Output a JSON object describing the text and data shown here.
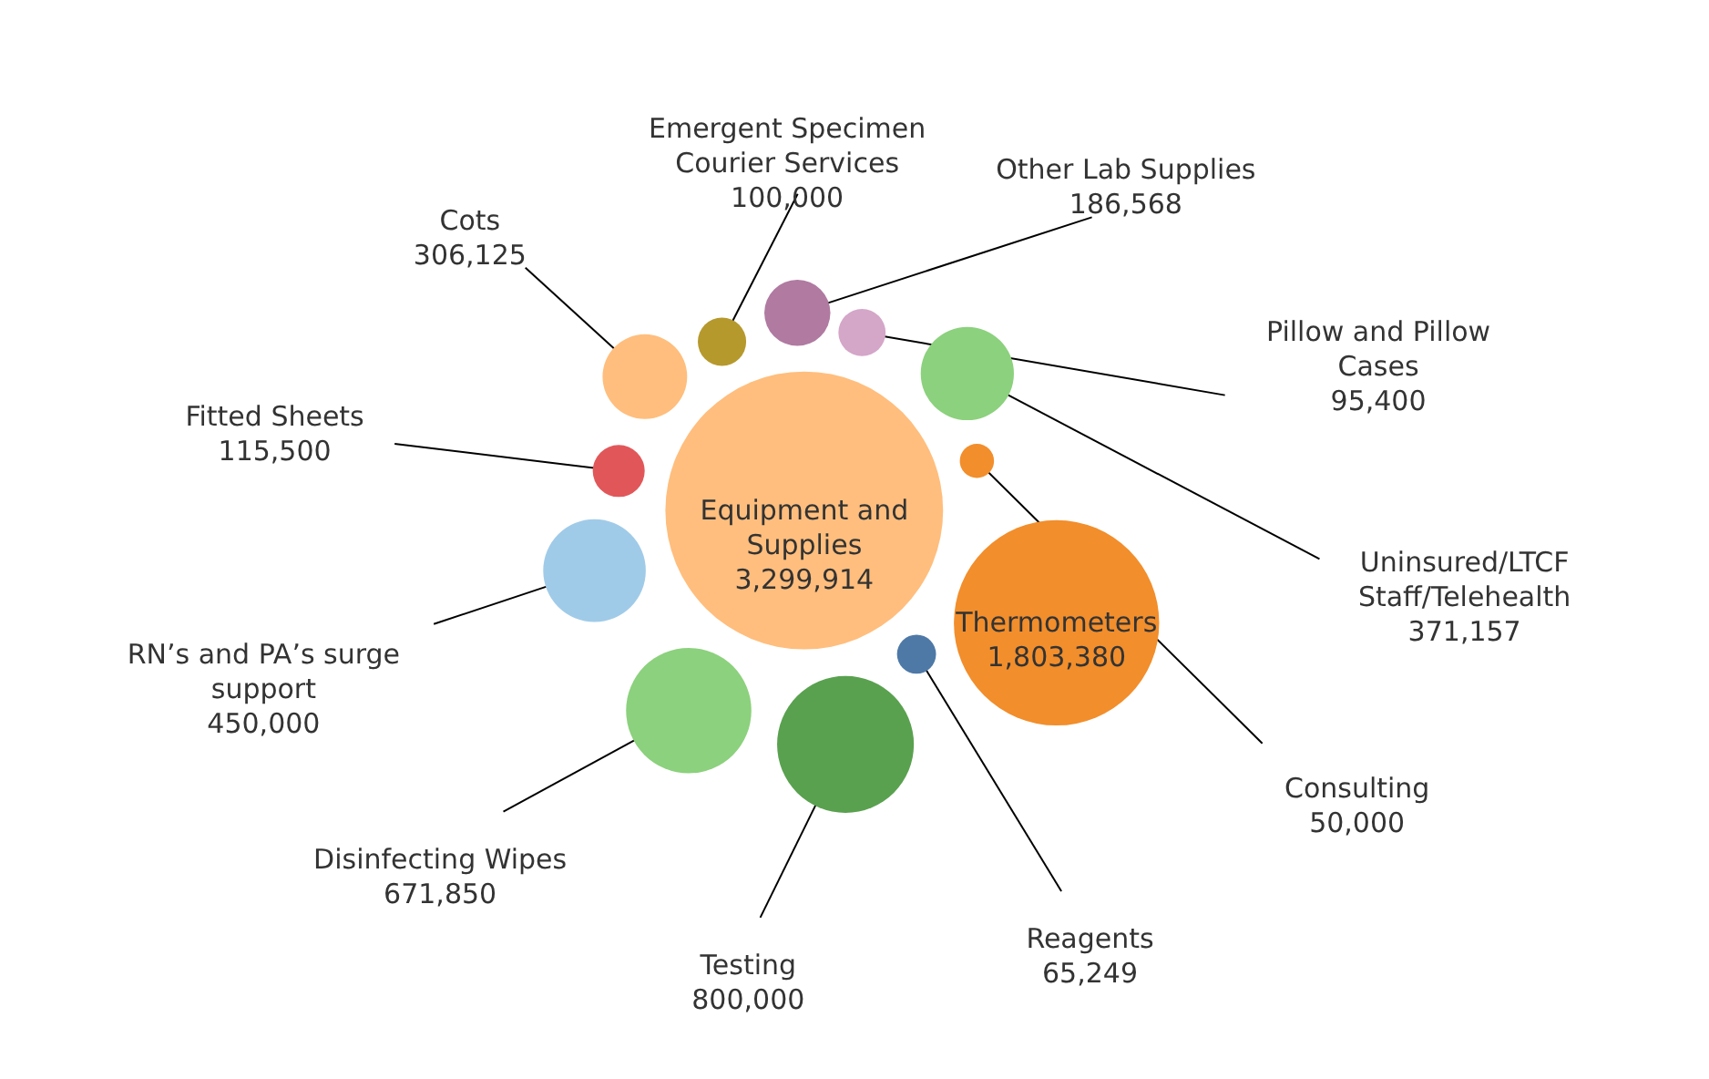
{
  "chart_data": {
    "type": "other",
    "categories": [
      "Equipment and Supplies",
      "Thermometers",
      "Testing",
      "Disinfecting Wipes",
      "RN’s and PA’s surge support",
      "Uninsured/LTCF Staff/Telehealth",
      "Cots",
      "Other Lab Supplies",
      "Fitted Sheets",
      "Emergent Specimen Courier Services",
      "Pillow and Pillow Cases",
      "Reagents",
      "Consulting"
    ],
    "values": [
      3299914,
      1803380,
      800000,
      671850,
      450000,
      371157,
      306125,
      186568,
      115500,
      100000,
      95400,
      65249,
      50000
    ],
    "colors": [
      "#ffbe7d",
      "#f28e2b",
      "#59a14f",
      "#8cd17d",
      "#a0cbe8",
      "#8cd17d",
      "#ffbe7d",
      "#b07aa1",
      "#e15759",
      "#b6992d",
      "#d4a6c8",
      "#4e79a7",
      "#f28e2b"
    ],
    "value_labels": [
      "3,299,914",
      "1,803,380",
      "800,000",
      "671,850",
      "450,000",
      "371,157",
      "306,125",
      "186,568",
      "115,500",
      "100,000",
      "95,400",
      "65,249",
      "50,000"
    ]
  }
}
